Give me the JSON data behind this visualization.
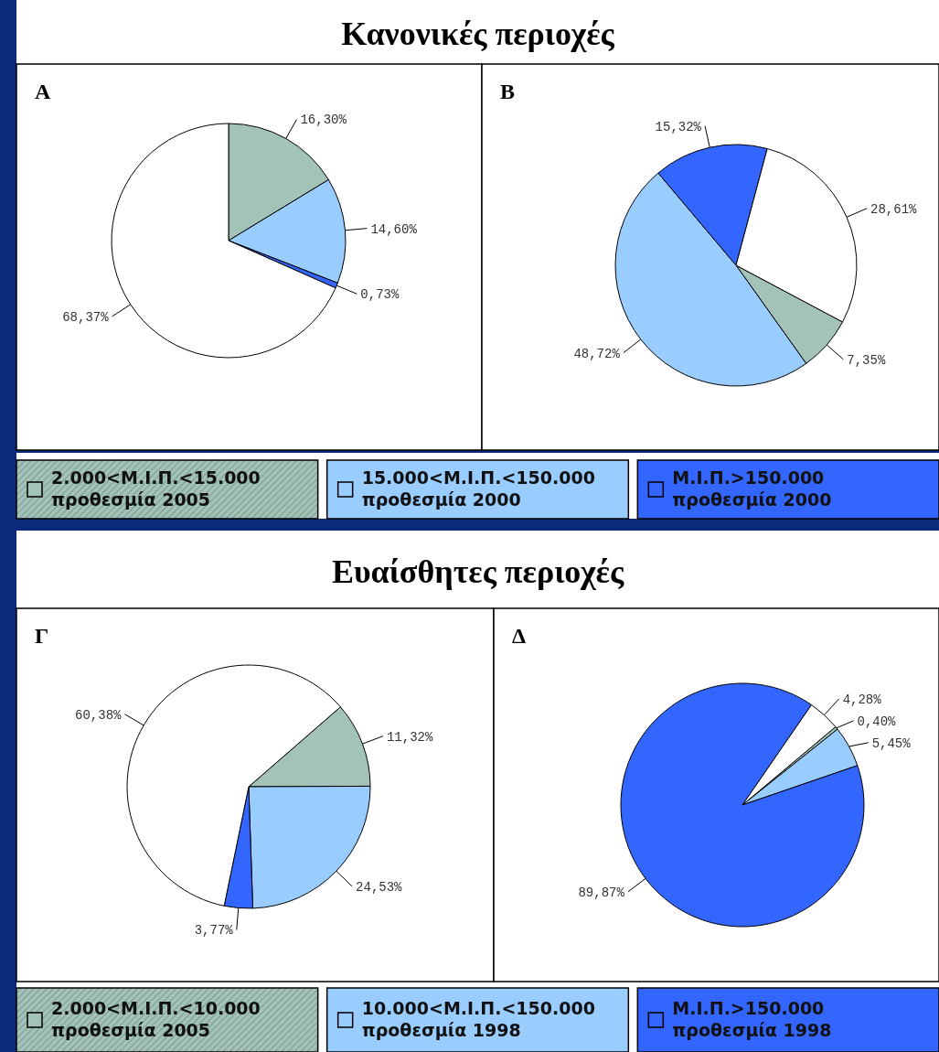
{
  "chart_data": [
    {
      "type": "pie",
      "title": "Α",
      "annotations": [
        "Κανονικές περιοχές"
      ],
      "legend": "bottom",
      "categories": [
        "2.000<Μ.Ι.Π.<15.000\nπροθεσμία 2005",
        "15.000<Μ.Ι.Π.<150.000\nπροθεσμία 2000",
        "Μ.Ι.Π.>150.000\nπροθεσμία 2000",
        null
      ],
      "values": [
        16.3,
        14.6,
        0.73,
        68.37
      ],
      "value_labels": [
        "16,30%",
        "14,60%",
        "0,73%",
        "68,37%"
      ],
      "colors": [
        "#a3c2b8",
        "#99ccff",
        "#3366ff",
        "#ffffff"
      ]
    },
    {
      "type": "pie",
      "title": "Β",
      "categories": [
        null,
        null,
        null,
        null
      ],
      "values": [
        7.35,
        48.72,
        15.32,
        28.61
      ],
      "value_labels": [
        "7,35%",
        "48,72%",
        "15,32%",
        "28,61%"
      ],
      "colors": [
        "#a3c2b8",
        "#99ccff",
        "#3366ff",
        "#ffffff"
      ]
    },
    {
      "type": "pie",
      "title": "Γ",
      "annotations": [
        "Ευαίσθητες περιοχές"
      ],
      "legend": "bottom",
      "categories": [
        "2.000<Μ.Ι.Π.<10.000\nπροθεσμία 2005",
        "10.000<Μ.Ι.Π.<150.000\nπροθεσμία 1998",
        "Μ.Ι.Π.>150.000\nπροθεσμία 1998",
        null
      ],
      "values": [
        11.32,
        24.53,
        3.77,
        60.38
      ],
      "value_labels": [
        "11,32%",
        "24,53%",
        "3,77%",
        "60,38%"
      ],
      "colors": [
        "#a3c2b8",
        "#99ccff",
        "#3366ff",
        "#ffffff"
      ]
    },
    {
      "type": "pie",
      "title": "Δ",
      "categories": [
        null,
        null,
        null,
        null
      ],
      "values": [
        0.4,
        5.45,
        89.87,
        4.28
      ],
      "value_labels": [
        "0,40%",
        "5,45%",
        "89,87%",
        "4,28%"
      ],
      "colors": [
        "#a3c2b8",
        "#99ccff",
        "#3366ff",
        "#ffffff"
      ]
    }
  ]
}
